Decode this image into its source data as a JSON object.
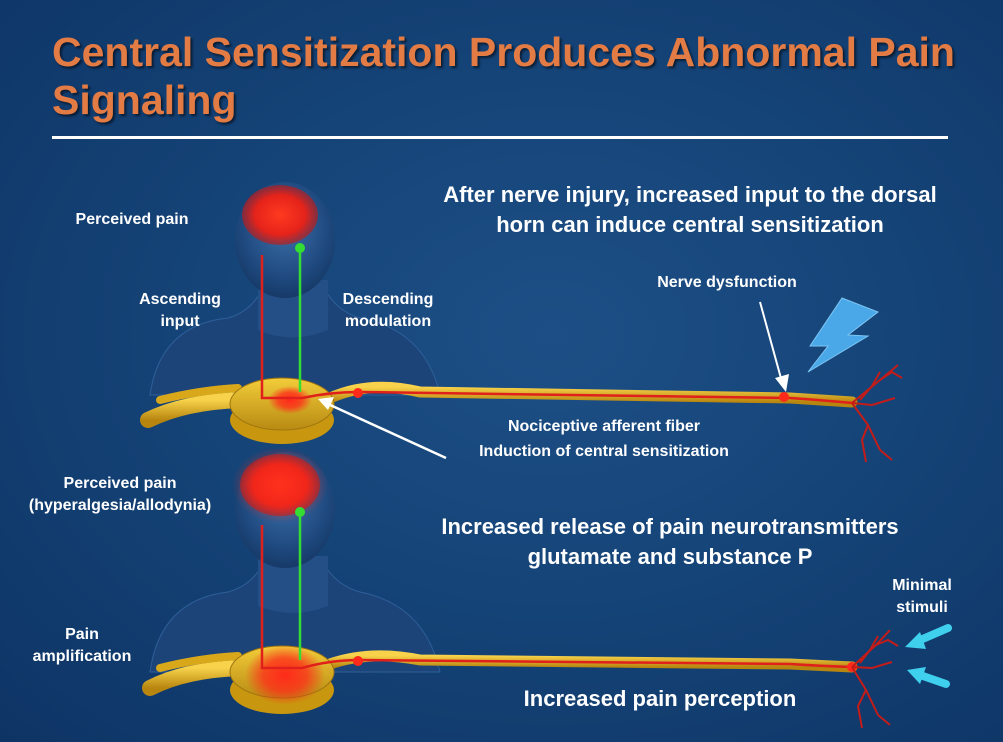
{
  "title": "Central Sensitization Produces Abnormal Pain Signaling",
  "top_panel": {
    "heading_line1": "After nerve injury, increased input to the dorsal",
    "heading_line2": "horn can induce central sensitization",
    "perceived_pain": "Perceived pain",
    "ascending_line1": "Ascending",
    "ascending_line2": "input",
    "descending_line1": "Descending",
    "descending_line2": "modulation",
    "nerve_dysfunction": "Nerve dysfunction",
    "nociceptive_fiber": "Nociceptive afferent fiber",
    "induction": "Induction of central sensitization"
  },
  "bottom_panel": {
    "perceived_pain": "Perceived pain",
    "hyperalgesia": "(hyperalgesia/allodynia)",
    "heading_line1": "Increased release of pain neurotransmitters",
    "heading_line2": "glutamate and substance P",
    "pain_line1": "Pain",
    "pain_line2": "amplification",
    "minimal_line1": "Minimal",
    "minimal_line2": "stimuli",
    "increased_perception": "Increased pain perception"
  },
  "colors": {
    "background": "#154478",
    "title": "#e37b45",
    "text": "#ffffff",
    "pain_red": "#ff2a1a",
    "nerve_yellow": "#e3b320",
    "descending_green": "#33dd33",
    "lightning": "#4aa8e8",
    "arrow_cyan": "#3fd0ee"
  }
}
